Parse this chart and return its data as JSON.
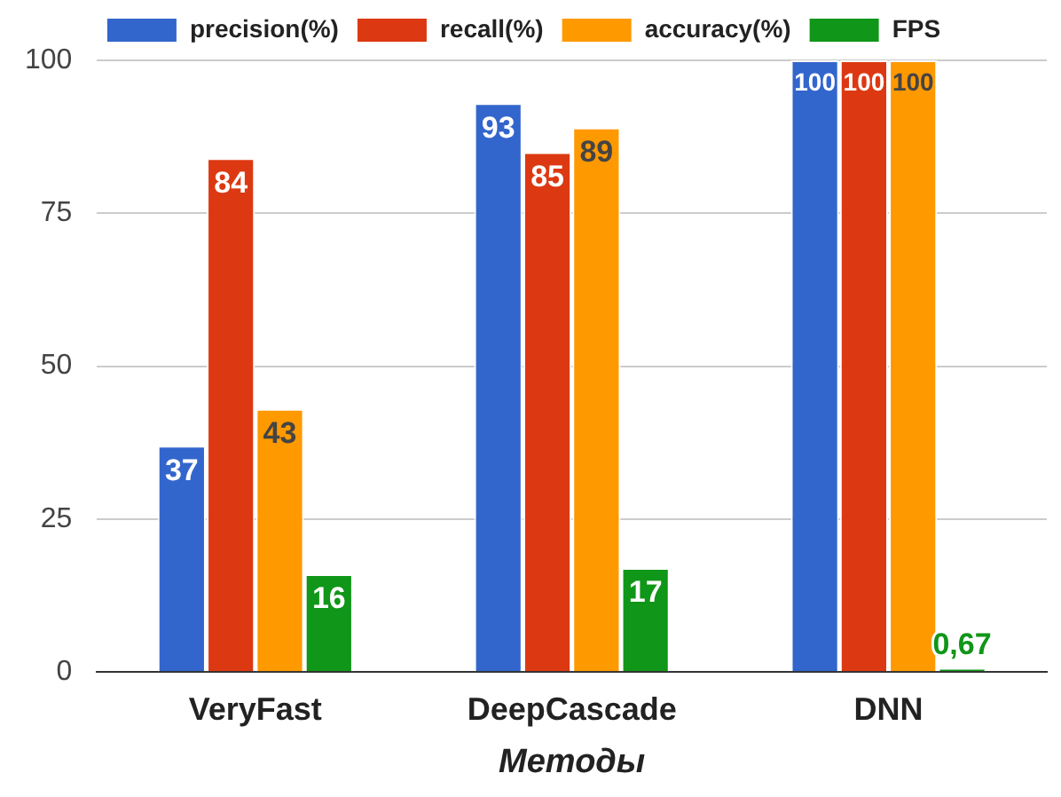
{
  "chart_data": {
    "type": "bar",
    "categories": [
      "VeryFast",
      "DeepCascade",
      "DNN"
    ],
    "xlabel": "Методы",
    "ylim": [
      0,
      100
    ],
    "yticks": [
      0,
      25,
      50,
      75,
      100
    ],
    "grid": "y",
    "legend": "top",
    "series": [
      {
        "name": "precision(%)",
        "color": "#3366cc",
        "values": [
          37,
          93,
          100
        ],
        "value_labels": [
          "37",
          "93",
          "100"
        ]
      },
      {
        "name": "recall(%)",
        "color": "#dc3912",
        "values": [
          84,
          85,
          100
        ],
        "value_labels": [
          "84",
          "85",
          "100"
        ]
      },
      {
        "name": "accuracy(%)",
        "color": "#ff9900",
        "values": [
          43,
          89,
          100
        ],
        "value_labels": [
          "43",
          "89",
          "100"
        ]
      },
      {
        "name": "FPS",
        "color": "#109618",
        "values": [
          16,
          17,
          0.67
        ],
        "value_labels": [
          "16",
          "17",
          "0,67"
        ]
      }
    ]
  }
}
